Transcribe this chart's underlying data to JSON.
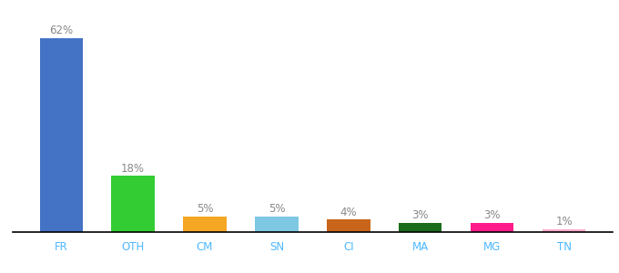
{
  "categories": [
    "FR",
    "OTH",
    "CM",
    "SN",
    "CI",
    "MA",
    "MG",
    "TN"
  ],
  "values": [
    62,
    18,
    5,
    5,
    4,
    3,
    3,
    1
  ],
  "labels": [
    "62%",
    "18%",
    "5%",
    "5%",
    "4%",
    "3%",
    "3%",
    "1%"
  ],
  "bar_colors": [
    "#4472c4",
    "#33cc33",
    "#f5a623",
    "#7ec8e3",
    "#c8651a",
    "#1a6b1a",
    "#ff1a8c",
    "#ffaacc"
  ],
  "tick_colors": [
    "#4472c4",
    "#4472c4",
    "#4472c4",
    "#4472c4",
    "#4472c4",
    "#4472c4",
    "#4472c4",
    "#4472c4"
  ],
  "label_color": "#888888",
  "background_color": "#ffffff",
  "ylim": [
    0,
    68
  ],
  "figsize": [
    6.8,
    3.0
  ],
  "dpi": 100
}
